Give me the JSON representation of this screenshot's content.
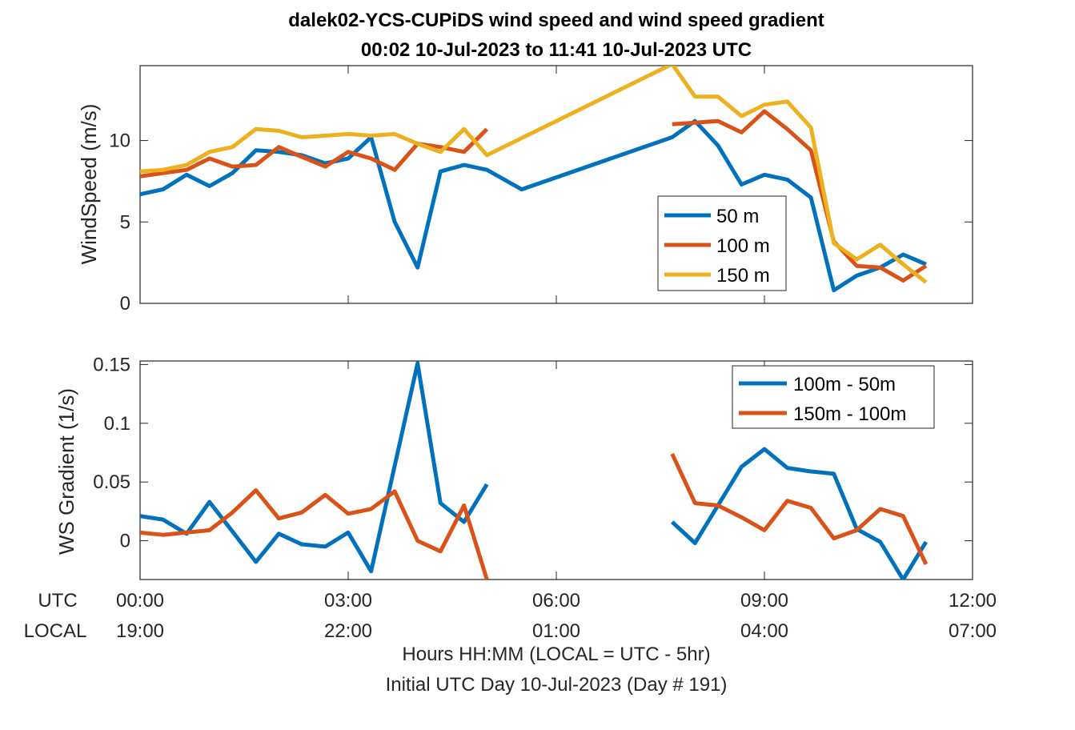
{
  "title_line1": "dalek02-YCS-CUPiDS  wind speed and wind speed gradient",
  "title_line2": "00:02 10-Jul-2023 to 11:41 10-Jul-2023  UTC",
  "x_axis": {
    "row_labels": [
      "UTC",
      "LOCAL"
    ],
    "utc_ticks": [
      "00:00",
      "03:00",
      "06:00",
      "09:00",
      "12:00"
    ],
    "local_ticks": [
      "19:00",
      "22:00",
      "01:00",
      "04:00",
      "07:00"
    ],
    "xlabel_line1": "Hours HH:MM  (LOCAL = UTC - 5hr)",
    "xlabel_line2": "Initial UTC Day 10-Jul-2023 (Day # 191)"
  },
  "colors": {
    "blue": "#0072BD",
    "orange": "#D95319",
    "yellow": "#EDB120"
  },
  "chart_data": [
    {
      "type": "line",
      "ylabel": "WindSpeed (m/s)",
      "xlim": [
        0,
        12
      ],
      "ylim": [
        0,
        14.6
      ],
      "yticks": [
        0,
        5,
        10
      ],
      "ytick_labels": [
        "0",
        "5",
        "10"
      ],
      "legend_position": "inside-right",
      "series": [
        {
          "name": "50 m",
          "color": "#0072BD",
          "points": [
            [
              0.0,
              6.7
            ],
            [
              0.33,
              7.0
            ],
            [
              0.67,
              7.9
            ],
            [
              1.0,
              7.2
            ],
            [
              1.33,
              8.0
            ],
            [
              1.67,
              9.4
            ],
            [
              2.0,
              9.3
            ],
            [
              2.33,
              9.1
            ],
            [
              2.67,
              8.6
            ],
            [
              3.0,
              8.9
            ],
            [
              3.33,
              10.2
            ],
            [
              3.67,
              5.0
            ],
            [
              4.0,
              2.2
            ],
            [
              4.33,
              8.1
            ],
            [
              4.67,
              8.5
            ],
            [
              5.0,
              8.2
            ],
            [
              5.5,
              7.0
            ],
            [
              7.67,
              10.2
            ],
            [
              8.0,
              11.2
            ],
            [
              8.33,
              9.7
            ],
            [
              8.67,
              7.3
            ],
            [
              9.0,
              7.9
            ],
            [
              9.33,
              7.6
            ],
            [
              9.67,
              6.5
            ],
            [
              10.0,
              0.8
            ],
            [
              10.33,
              1.7
            ],
            [
              10.67,
              2.2
            ],
            [
              11.0,
              3.0
            ],
            [
              11.33,
              2.4
            ]
          ]
        },
        {
          "name": "100 m",
          "color": "#D95319",
          "points": [
            [
              0.0,
              7.8
            ],
            [
              0.33,
              8.0
            ],
            [
              0.67,
              8.2
            ],
            [
              1.0,
              8.9
            ],
            [
              1.33,
              8.4
            ],
            [
              1.67,
              8.5
            ],
            [
              2.0,
              9.6
            ],
            [
              2.33,
              9.0
            ],
            [
              2.67,
              8.4
            ],
            [
              3.0,
              9.3
            ],
            [
              3.33,
              8.9
            ],
            [
              3.67,
              8.2
            ],
            [
              4.0,
              9.8
            ],
            [
              4.33,
              9.6
            ],
            [
              4.67,
              9.3
            ],
            [
              5.0,
              10.7
            ],
            null,
            [
              7.67,
              11.0
            ],
            [
              8.0,
              11.1
            ],
            [
              8.33,
              11.2
            ],
            [
              8.67,
              10.5
            ],
            [
              9.0,
              11.8
            ],
            [
              9.33,
              10.7
            ],
            [
              9.67,
              9.4
            ],
            [
              10.0,
              3.8
            ],
            [
              10.33,
              2.3
            ],
            [
              10.67,
              2.2
            ],
            [
              11.0,
              1.4
            ],
            [
              11.33,
              2.3
            ]
          ]
        },
        {
          "name": "150 m",
          "color": "#EDB120",
          "points": [
            [
              0.0,
              8.1
            ],
            [
              0.33,
              8.2
            ],
            [
              0.67,
              8.5
            ],
            [
              1.0,
              9.3
            ],
            [
              1.33,
              9.6
            ],
            [
              1.67,
              10.7
            ],
            [
              2.0,
              10.6
            ],
            [
              2.33,
              10.2
            ],
            [
              2.67,
              10.3
            ],
            [
              3.0,
              10.4
            ],
            [
              3.33,
              10.3
            ],
            [
              3.67,
              10.4
            ],
            [
              4.0,
              9.8
            ],
            [
              4.33,
              9.3
            ],
            [
              4.67,
              10.7
            ],
            [
              5.0,
              9.1
            ],
            [
              7.67,
              14.7
            ],
            [
              8.0,
              12.7
            ],
            [
              8.33,
              12.7
            ],
            [
              8.67,
              11.5
            ],
            [
              9.0,
              12.2
            ],
            [
              9.33,
              12.4
            ],
            [
              9.67,
              10.8
            ],
            [
              10.0,
              3.7
            ],
            [
              10.33,
              2.7
            ],
            [
              10.67,
              3.6
            ],
            [
              11.0,
              2.4
            ],
            [
              11.33,
              1.3
            ]
          ]
        }
      ]
    },
    {
      "type": "line",
      "ylabel": "WS Gradient (1/s)",
      "xlim": [
        0,
        12
      ],
      "ylim": [
        -0.033,
        0.153
      ],
      "yticks": [
        0,
        0.05,
        0.1,
        0.15
      ],
      "ytick_labels": [
        "0",
        "0.05",
        "0.1",
        "0.15"
      ],
      "legend_position": "top-right",
      "series": [
        {
          "name": "100m - 50m",
          "color": "#0072BD",
          "points": [
            [
              0.0,
              0.021
            ],
            [
              0.33,
              0.018
            ],
            [
              0.67,
              0.006
            ],
            [
              1.0,
              0.033
            ],
            [
              1.33,
              0.008
            ],
            [
              1.67,
              -0.018
            ],
            [
              2.0,
              0.006
            ],
            [
              2.33,
              -0.003
            ],
            [
              2.67,
              -0.005
            ],
            [
              3.0,
              0.007
            ],
            [
              3.33,
              -0.026
            ],
            [
              4.0,
              0.151
            ],
            [
              4.33,
              0.032
            ],
            [
              4.67,
              0.016
            ],
            [
              5.0,
              0.048
            ],
            null,
            [
              7.67,
              0.016
            ],
            [
              8.0,
              -0.002
            ],
            [
              8.33,
              0.03
            ],
            [
              8.67,
              0.063
            ],
            [
              9.0,
              0.078
            ],
            [
              9.33,
              0.062
            ],
            [
              9.67,
              0.059
            ],
            [
              10.0,
              0.057
            ],
            [
              10.33,
              0.01
            ],
            [
              10.67,
              -0.001
            ],
            [
              11.0,
              -0.033
            ],
            [
              11.33,
              -0.001
            ]
          ]
        },
        {
          "name": "150m - 100m",
          "color": "#D95319",
          "points": [
            [
              0.0,
              0.007
            ],
            [
              0.33,
              0.005
            ],
            [
              0.67,
              0.007
            ],
            [
              1.0,
              0.009
            ],
            [
              1.33,
              0.024
            ],
            [
              1.67,
              0.043
            ],
            [
              2.0,
              0.019
            ],
            [
              2.33,
              0.024
            ],
            [
              2.67,
              0.039
            ],
            [
              3.0,
              0.023
            ],
            [
              3.33,
              0.027
            ],
            [
              3.67,
              0.042
            ],
            [
              4.0,
              0.0
            ],
            [
              4.33,
              -0.009
            ],
            [
              4.67,
              0.03
            ],
            [
              5.0,
              -0.033
            ],
            null,
            [
              7.67,
              0.074
            ],
            [
              8.0,
              0.032
            ],
            [
              8.33,
              0.03
            ],
            [
              8.67,
              0.02
            ],
            [
              9.0,
              0.009
            ],
            [
              9.33,
              0.034
            ],
            [
              9.67,
              0.028
            ],
            [
              10.0,
              0.002
            ],
            [
              10.33,
              0.009
            ],
            [
              10.67,
              0.027
            ],
            [
              11.0,
              0.021
            ],
            [
              11.33,
              -0.02
            ]
          ]
        }
      ]
    }
  ]
}
